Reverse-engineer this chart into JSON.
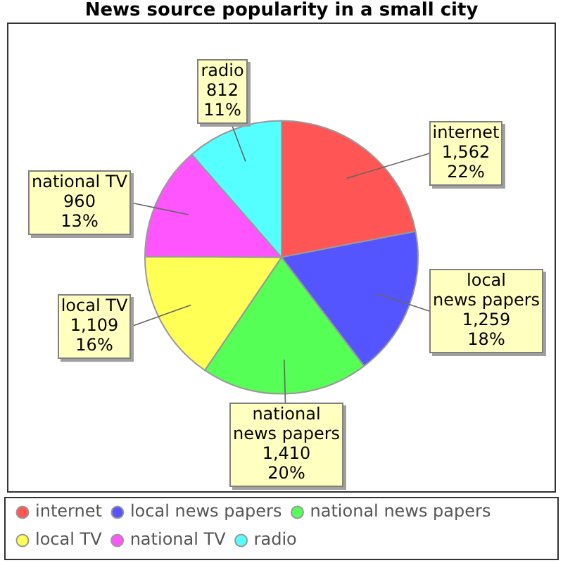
{
  "chart_data": {
    "type": "pie",
    "title": "News source popularity in a small city",
    "categories": [
      "internet",
      "local news papers",
      "national news papers",
      "local TV",
      "national TV",
      "radio"
    ],
    "values": [
      1562,
      1259,
      1410,
      1109,
      960,
      812
    ],
    "colors": [
      "#ff5555",
      "#5555ff",
      "#55ff55",
      "#ffff55",
      "#ff55ff",
      "#55ffff"
    ],
    "value_labels": [
      "1,562\n22%",
      "1,259\n18%",
      "1,410\n20%",
      "1,109\n16%",
      "960\n13%",
      "812\n11%"
    ],
    "legend": "bottom"
  }
}
